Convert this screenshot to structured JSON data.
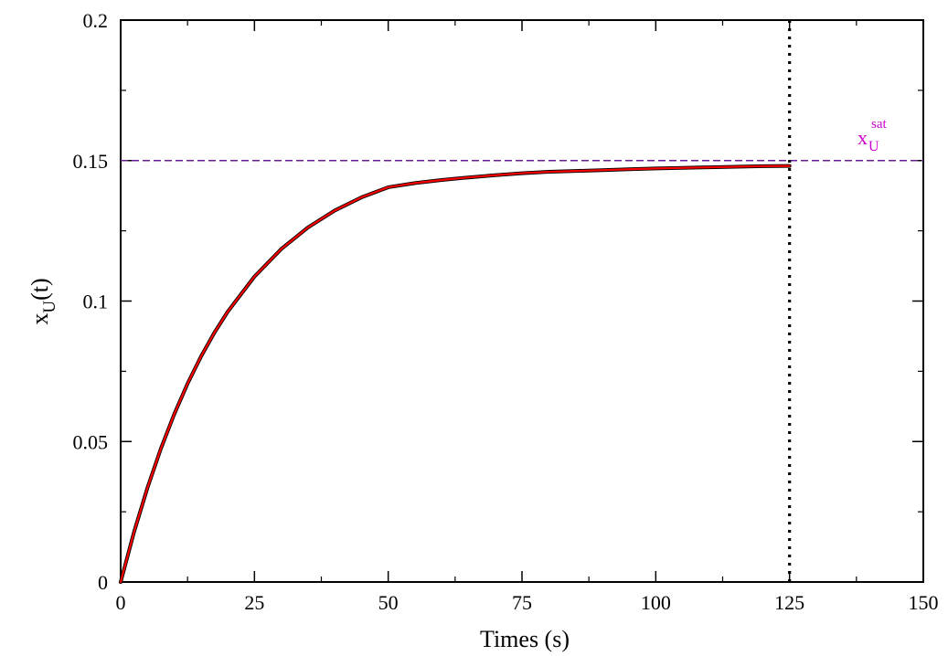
{
  "chart_data": {
    "type": "line",
    "xlabel": "Times (s)",
    "ylabel": {
      "base": "x",
      "sub": "U",
      "rest": "(t)"
    },
    "xlim": [
      0,
      150
    ],
    "ylim": [
      0,
      0.2
    ],
    "x_ticks": [
      0,
      25,
      50,
      75,
      100,
      125,
      150
    ],
    "x_tick_labels": [
      "0",
      "25",
      "50",
      "75",
      "100",
      "125",
      "150"
    ],
    "y_ticks": [
      0,
      0.05,
      0.1,
      0.15,
      0.2
    ],
    "y_tick_labels": [
      "0",
      "0.05",
      "0.1",
      "0.15",
      "0.2"
    ],
    "grid": false,
    "series": [
      {
        "color": "#000000",
        "x": [
          0,
          2.5,
          5,
          7.5,
          10,
          12.5,
          15,
          17.5,
          20,
          25,
          30,
          35,
          40,
          45,
          50,
          55,
          60,
          65,
          70,
          75,
          80,
          85,
          90,
          95,
          100,
          105,
          110,
          115,
          120,
          125
        ],
        "y": [
          0,
          0.0178,
          0.0335,
          0.0474,
          0.0597,
          0.0706,
          0.0802,
          0.0887,
          0.0962,
          0.1087,
          0.1185,
          0.1262,
          0.1322,
          0.1369,
          0.1405,
          0.142,
          0.1431,
          0.144,
          0.1448,
          0.1455,
          0.146,
          0.1463,
          0.1466,
          0.1469,
          0.1472,
          0.1474,
          0.1476,
          0.1478,
          0.148,
          0.1481
        ]
      },
      {
        "color": "#ff0000",
        "x": [
          0,
          2.5,
          5,
          7.5,
          10,
          12.5,
          15,
          17.5,
          20,
          25,
          30,
          35,
          40,
          45,
          50,
          55,
          60,
          65,
          70,
          75,
          80,
          85,
          90,
          95,
          100,
          105,
          110,
          115,
          120,
          125
        ],
        "y": [
          0,
          0.0178,
          0.0335,
          0.0474,
          0.0597,
          0.0706,
          0.0802,
          0.0887,
          0.0962,
          0.1087,
          0.1185,
          0.1262,
          0.1322,
          0.1369,
          0.1405,
          0.142,
          0.1431,
          0.144,
          0.1448,
          0.1455,
          0.146,
          0.1463,
          0.1466,
          0.1469,
          0.1472,
          0.1474,
          0.1476,
          0.1478,
          0.148,
          0.1481
        ]
      }
    ],
    "reference_lines": [
      {
        "orientation": "horizontal",
        "value": 0.15,
        "style": "dashed",
        "color": "#6a1b9a"
      },
      {
        "orientation": "vertical",
        "value": 125,
        "style": "dotted",
        "color": "#000000"
      }
    ],
    "annotations": [
      {
        "base": "x",
        "sub": "U",
        "sup": "sat",
        "color": "#cc00cc"
      }
    ]
  }
}
